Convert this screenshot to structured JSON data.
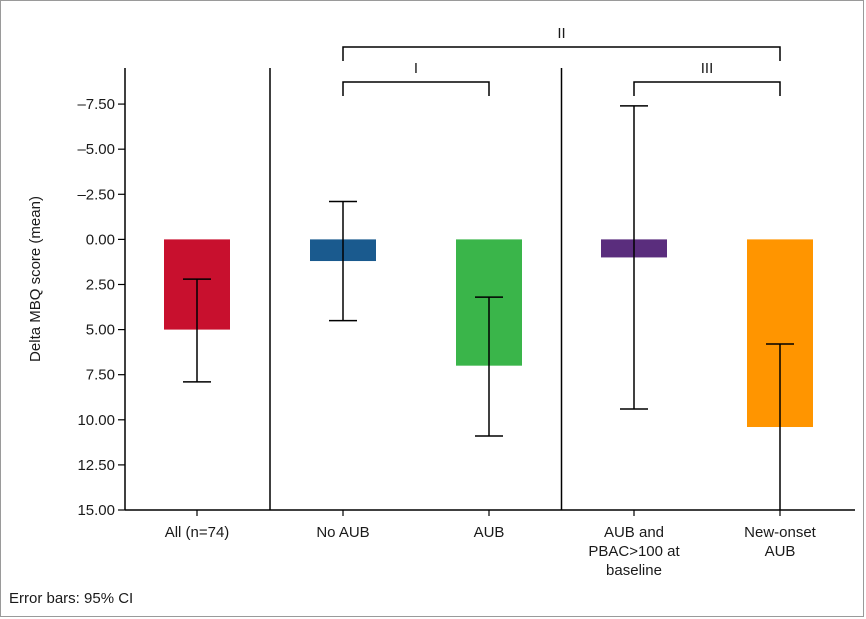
{
  "chart_data": {
    "type": "bar",
    "ylabel": "Delta MBQ score (mean)",
    "y_inverted": true,
    "ylim": [
      -9.5,
      15
    ],
    "yticks": [
      "-7.50",
      "-5.00",
      "-2.50",
      "0.00",
      "2.50",
      "5.00",
      "7.50",
      "10.00",
      "12.50",
      "15.00"
    ],
    "ytick_values": [
      -7.5,
      -5,
      -2.5,
      0,
      2.5,
      5,
      7.5,
      10,
      12.5,
      15
    ],
    "categories": [
      [
        "All (n=74)"
      ],
      [
        "No AUB"
      ],
      [
        "AUB"
      ],
      [
        "AUB and",
        "PBAC>100 at",
        "baseline"
      ],
      [
        "New-onset",
        "AUB"
      ]
    ],
    "values": [
      5.0,
      1.2,
      7.0,
      1.0,
      10.4
    ],
    "ci_low": [
      2.2,
      -2.1,
      3.2,
      -7.4,
      5.8
    ],
    "ci_high": [
      7.9,
      4.5,
      10.9,
      9.4,
      15.0
    ],
    "colors": [
      "#c8102e",
      "#1a5a8e",
      "#3ab54a",
      "#5a2d7d",
      "#ff9500"
    ],
    "separators_after_category": [
      0,
      2
    ],
    "brackets": [
      {
        "label": "I",
        "from": 1,
        "to": 2,
        "level": 1
      },
      {
        "label": "II",
        "from": 1,
        "to": 4,
        "level": 2
      },
      {
        "label": "III",
        "from": 3,
        "to": 4,
        "level": 1
      }
    ],
    "grid": false
  },
  "footnote": "Error bars: 95% CI"
}
